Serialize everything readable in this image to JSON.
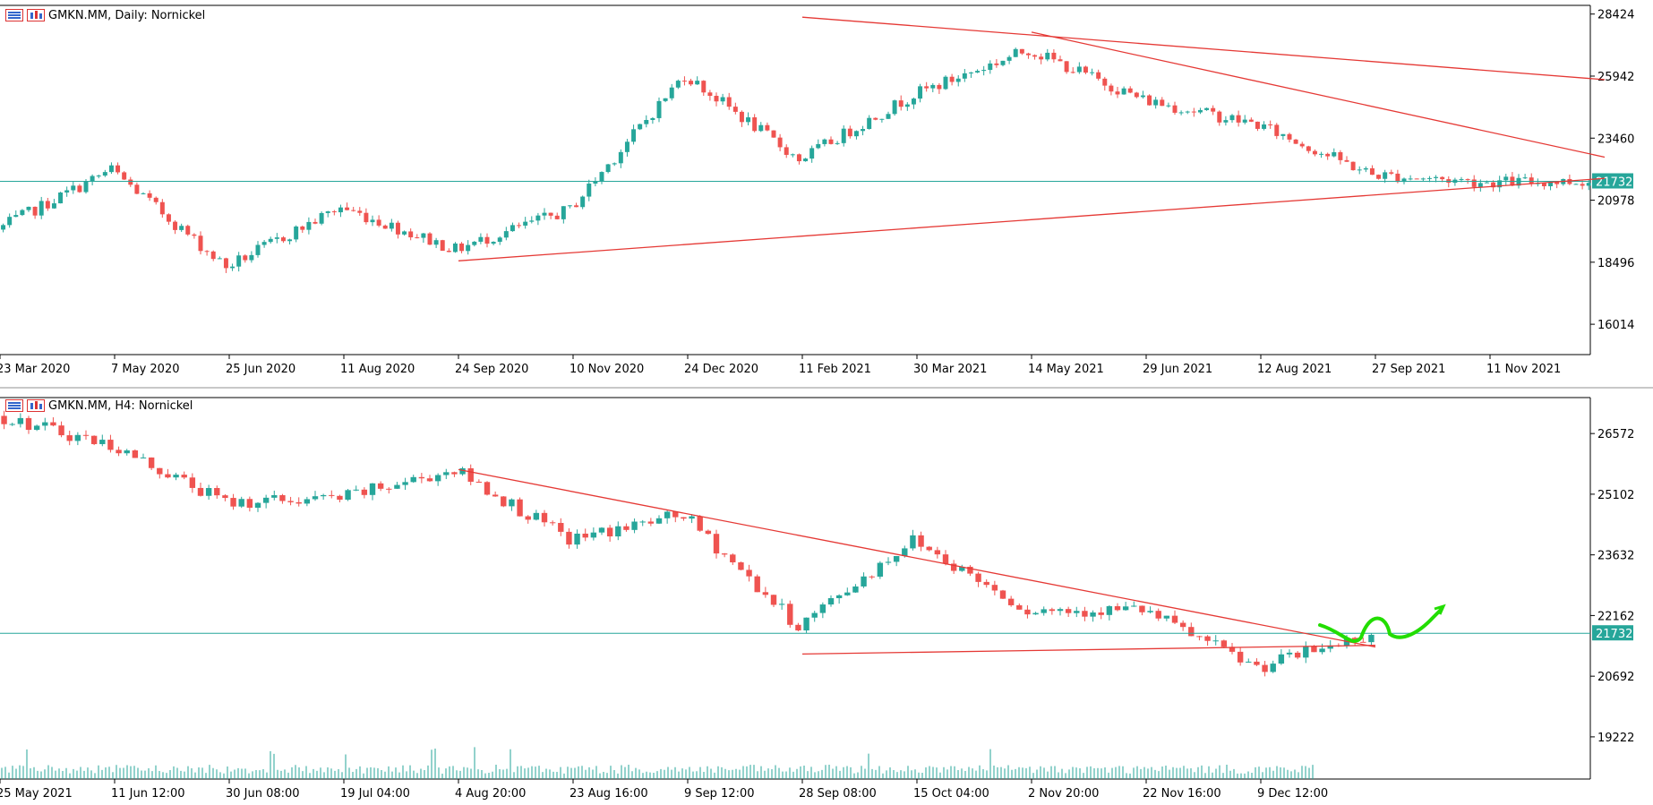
{
  "colors": {
    "bull": "#26a69a",
    "bear": "#ef5350",
    "trend": "#e53935",
    "hline": "#26a69a",
    "green": "#22dd00",
    "axis": "#000000"
  },
  "icons": [
    "list-icon",
    "chart-properties-icon"
  ],
  "panels": [
    {
      "symbol": "GMKN.MM",
      "timeframe": "Daily",
      "description": "Nornickel",
      "header": "GMKN.MM, Daily:  Nornickel",
      "current_price_label": "21732",
      "price_ticks": [
        "28424",
        "25942",
        "23460",
        "20978",
        "18496",
        "16014"
      ],
      "time_ticks": [
        "23 Mar 2020",
        "7 May 2020",
        "25 Jun 2020",
        "11 Aug 2020",
        "24 Sep 2020",
        "10 Nov 2020",
        "24 Dec 2020",
        "11 Feb 2021",
        "30 Mar 2021",
        "14 May 2021",
        "29 Jun 2021",
        "12 Aug 2021",
        "27 Sep 2021",
        "11 Nov 2021"
      ]
    },
    {
      "symbol": "GMKN.MM",
      "timeframe": "H4",
      "description": "Nornickel",
      "header": "GMKN.MM, H4:  Nornickel",
      "current_price_label": "21732",
      "price_ticks": [
        "26572",
        "25102",
        "23632",
        "22162",
        "20692",
        "19222"
      ],
      "time_ticks": [
        "25 May 2021",
        "11 Jun 12:00",
        "30 Jun 08:00",
        "19 Jul 04:00",
        "4 Aug 20:00",
        "23 Aug 16:00",
        "9 Sep 12:00",
        "28 Sep 08:00",
        "15 Oct 04:00",
        "2 Nov 20:00",
        "22 Nov 16:00",
        "9 Dec 12:00"
      ]
    }
  ],
  "chart_data": [
    {
      "type": "candlestick",
      "title": "GMKN.MM, Daily:  Nornickel",
      "timeframe": "Daily",
      "x": [
        "23 Mar 2020",
        "7 May 2020",
        "25 Jun 2020",
        "11 Aug 2020",
        "24 Sep 2020",
        "10 Nov 2020",
        "24 Dec 2020",
        "11 Feb 2021",
        "30 Mar 2021",
        "14 May 2021",
        "29 Jun 2021",
        "12 Aug 2021",
        "27 Sep 2021",
        "11 Nov 2021",
        "end"
      ],
      "close": [
        19800,
        22200,
        18300,
        20700,
        19000,
        20600,
        26000,
        22600,
        25200,
        27000,
        25000,
        24000,
        22000,
        21700,
        21732
      ],
      "ylim": [
        14800,
        28700
      ],
      "current_price": 21732,
      "horizontal_line": 21732,
      "trend_lines": [
        {
          "from": [
            "11 Feb 2021",
            28300
          ],
          "to": [
            "end",
            25800
          ]
        },
        {
          "from": [
            "14 May 2021",
            27700
          ],
          "to": [
            "end",
            22700
          ]
        },
        {
          "from": [
            "24 Sep 2020",
            18550
          ],
          "to": [
            "end",
            21850
          ]
        }
      ],
      "grid": false,
      "legend": "none"
    },
    {
      "type": "candlestick",
      "title": "GMKN.MM, H4:  Nornickel",
      "timeframe": "H4",
      "x": [
        "25 May 2021",
        "11 Jun 12:00",
        "30 Jun 08:00",
        "19 Jul 04:00",
        "4 Aug 20:00",
        "23 Aug 16:00",
        "9 Sep 12:00",
        "28 Sep 08:00",
        "15 Oct 04:00",
        "2 Nov 20:00",
        "22 Nov 16:00",
        "9 Dec 12:00",
        "end"
      ],
      "close": [
        27000,
        26300,
        24900,
        25000,
        25700,
        24000,
        24600,
        21900,
        24000,
        22300,
        22300,
        20900,
        21732
      ],
      "ylim": [
        18200,
        27400
      ],
      "current_price": 21732,
      "horizontal_line": 21732,
      "trend_lines": [
        {
          "from": [
            "4 Aug 20:00",
            25700
          ],
          "to": [
            "end",
            21400
          ]
        },
        {
          "from": [
            "28 Sep 08:00",
            21230
          ],
          "to": [
            "end",
            21440
          ]
        }
      ],
      "grid": false,
      "legend": "none"
    }
  ]
}
